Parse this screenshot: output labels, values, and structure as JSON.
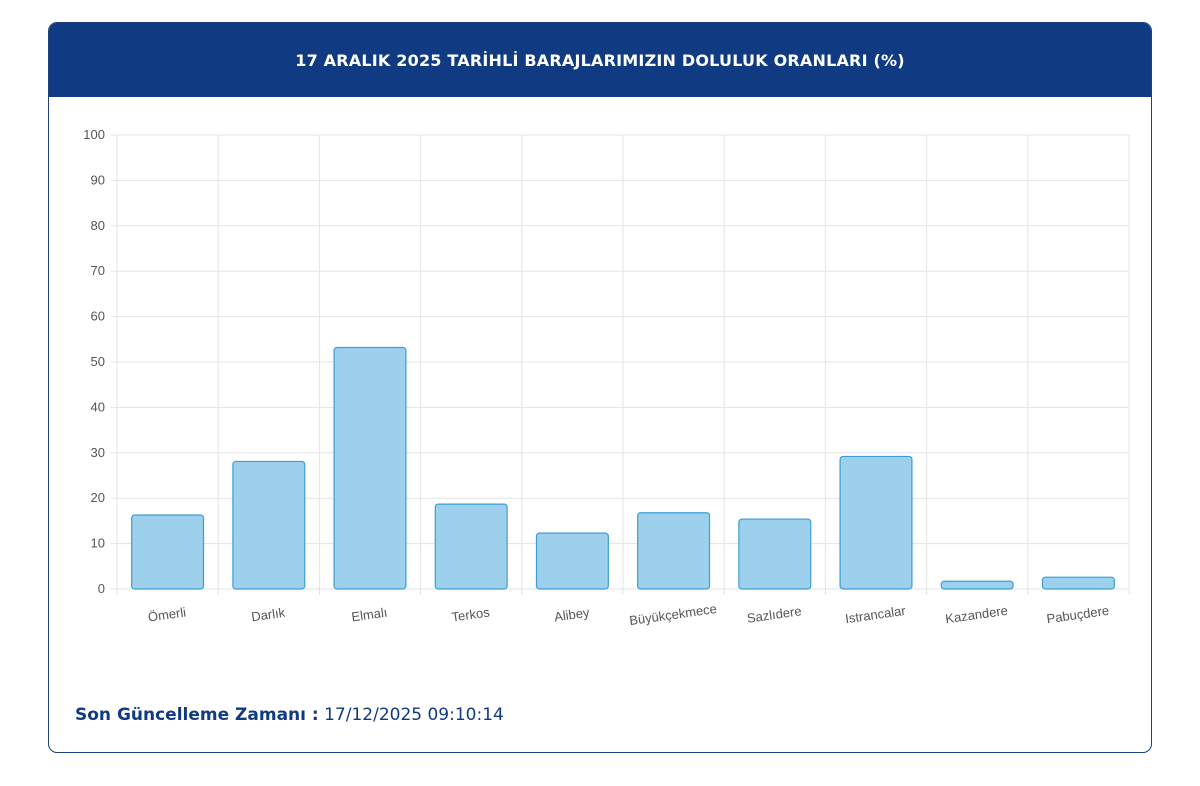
{
  "header": {
    "title": "17 ARALIK 2025 TARİHLİ BARAJLARIMIZIN DOLULUK ORANLARI (%)"
  },
  "footer": {
    "label": "Son Güncelleme Zamanı :",
    "value": "17/12/2025 09:10:14"
  },
  "colors": {
    "header_bg": "#103a82",
    "bar_fill": "#9dd0ed",
    "bar_stroke": "#3b9fd4",
    "grid": "#e3e3e3"
  },
  "chart_data": {
    "type": "bar",
    "categories": [
      "Ömerli",
      "Darlık",
      "Elmalı",
      "Terkos",
      "Alibey",
      "Büyükçekmece",
      "Sazlıdere",
      "Istrancalar",
      "Kazandere",
      "Pabuçdere"
    ],
    "values": [
      16.3,
      28.1,
      53.2,
      18.7,
      12.3,
      16.8,
      15.4,
      29.2,
      1.7,
      2.6
    ],
    "ylim": [
      0,
      100
    ],
    "yticks": [
      0,
      10,
      20,
      30,
      40,
      50,
      60,
      70,
      80,
      90,
      100
    ],
    "grid": true,
    "legend": "none"
  }
}
